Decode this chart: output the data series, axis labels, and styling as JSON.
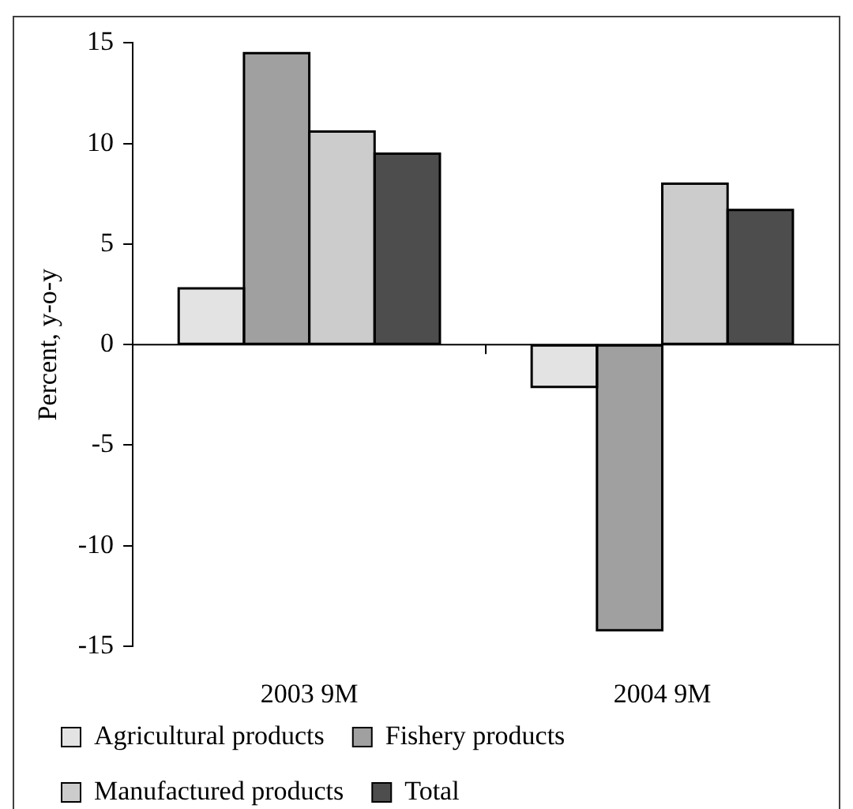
{
  "chart_data": {
    "type": "bar",
    "categories": [
      "2003 9M",
      "2004 9M"
    ],
    "ylabel": "Percent, y-o-y",
    "series": [
      {
        "name": "Agricultural products",
        "color": "#e3e3e3",
        "values": [
          2.8,
          -2.1
        ]
      },
      {
        "name": "Fishery products",
        "color": "#a0a0a0",
        "values": [
          14.5,
          -14.2
        ]
      },
      {
        "name": "Manufactured products",
        "color": "#cccccc",
        "values": [
          10.6,
          8.0
        ]
      },
      {
        "name": "Total",
        "color": "#4d4d4d",
        "values": [
          9.5,
          6.7
        ]
      }
    ],
    "ylim": [
      -15,
      15
    ],
    "yticks": [
      -15,
      -10,
      -5,
      0,
      5,
      10,
      15
    ],
    "ref_lines": [
      {
        "axis": "y",
        "value": 0,
        "color": "#000000"
      }
    ],
    "legend": "bottom",
    "grid": false
  }
}
